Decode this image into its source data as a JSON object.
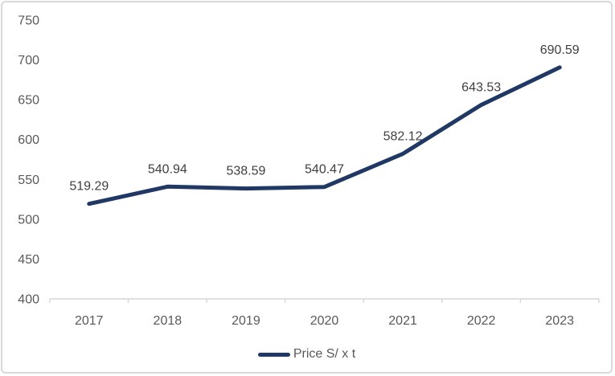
{
  "chart_data": {
    "type": "line",
    "title": "",
    "categories": [
      "2017",
      "2018",
      "2019",
      "2020",
      "2021",
      "2022",
      "2023"
    ],
    "series": [
      {
        "name": "Price S/ x t",
        "values": [
          519.29,
          540.94,
          538.59,
          540.47,
          582.12,
          643.53,
          690.59
        ]
      }
    ],
    "data_labels": [
      "519.29",
      "540.94",
      "538.59",
      "540.47",
      "582.12",
      "643.53",
      "690.59"
    ],
    "xlabel": "",
    "ylabel": "",
    "ylim": [
      400,
      750
    ],
    "yticks": [
      400,
      450,
      500,
      550,
      600,
      650,
      700,
      750
    ],
    "grid": false,
    "legend": {
      "label": "Price S/ x t",
      "position": "bottom-center"
    },
    "colors": {
      "line": "#1F3864",
      "data_label": "#404040",
      "axis_label": "#595959",
      "axis_line": "#D6D6D6",
      "border": "#D9D9D9",
      "background": "#FFFFFF"
    }
  }
}
